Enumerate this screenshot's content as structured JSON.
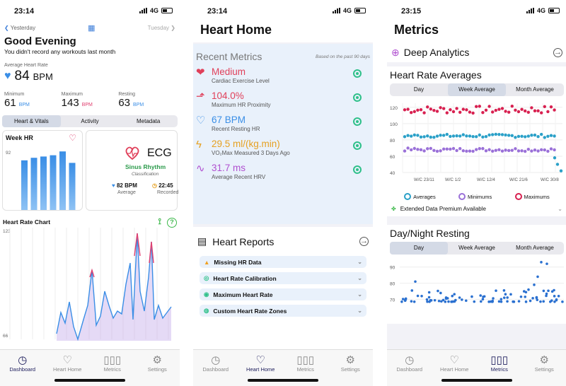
{
  "panels": [
    {
      "status": {
        "time": "23:14",
        "network": "4G"
      },
      "day_nav": {
        "prev": "Yesterday",
        "next": "Tuesday"
      },
      "greeting": "Good Evening",
      "subtitle": "You didn't record any workouts last month",
      "average": {
        "label": "Average Heart Rate",
        "value": "84",
        "unit": "BPM"
      },
      "stats": [
        {
          "label": "Minimum",
          "value": "61",
          "unit": "BPM"
        },
        {
          "label": "Maximum",
          "value": "143",
          "unit": "BPM"
        },
        {
          "label": "Resting",
          "value": "63",
          "unit": "BPM"
        }
      ],
      "segments": [
        "Heart & Vitals",
        "Activity",
        "Metadata"
      ],
      "week_hr": {
        "title": "Week HR",
        "axis_label": "92",
        "bars": [
          0.78,
          0.82,
          0.84,
          0.86,
          0.92,
          0.74
        ]
      },
      "ecg": {
        "title": "ECG",
        "rhythm": "Sinus Rhythm",
        "classification": "Classification",
        "avg_value": "82 BPM",
        "avg_label": "Average",
        "rec_value": "22:45",
        "rec_label": "Recorded"
      },
      "hr_chart": {
        "title": "Heart Rate Chart",
        "ymax": "123",
        "ymin": "66"
      },
      "colors": {
        "blue": "#3a8ee6",
        "pink": "#e04070",
        "green": "#3cb84a"
      }
    },
    {
      "status": {
        "time": "23:14",
        "network": "4G"
      },
      "title": "Heart Home",
      "recent": {
        "title": "Recent Metrics",
        "note": "Based on the past 90 days",
        "items": [
          {
            "icon": "heart-filled-icon",
            "value": "Medium",
            "label": "Cardiac Exercise Level",
            "color": "#e0405a"
          },
          {
            "icon": "chart-up-icon",
            "value": "104.0%",
            "label": "Maximum HR Proximity",
            "color": "#e0405a"
          },
          {
            "icon": "heart-outline-icon",
            "value": "67 BPM",
            "label": "Recent Resting HR",
            "color": "#3a8ee6"
          },
          {
            "icon": "bolt-icon",
            "value": "29.5 ml/(kg.min)",
            "label": "VO₂Max Measured 3 Days Ago",
            "color": "#e6a020"
          },
          {
            "icon": "waveform-icon",
            "value": "31.7 ms",
            "label": "Average Recent HRV",
            "color": "#b050d0"
          }
        ]
      },
      "reports": {
        "title": "Heart Reports",
        "items": [
          {
            "label": "Missing HR Data",
            "icon": "warning-icon",
            "color": "#f0a020"
          },
          {
            "label": "Heart Rate Calibration",
            "icon": "dial-icon",
            "color": "#2fc08a"
          },
          {
            "label": "Maximum Heart Rate",
            "icon": "target-icon",
            "color": "#2fc08a"
          },
          {
            "label": "Custom Heart Rate Zones",
            "icon": "zones-icon",
            "color": "#2fc08a"
          }
        ]
      }
    },
    {
      "status": {
        "time": "23:15",
        "network": "4G"
      },
      "title": "Metrics",
      "deep": "Deep Analytics",
      "averages": {
        "title": "Heart Rate Averages",
        "segments": [
          "Day",
          "Week Average",
          "Month Average"
        ],
        "y_ticks": [
          "120",
          "100",
          "80",
          "60",
          "40"
        ],
        "x_ticks": [
          "W/C 23/11",
          "W/C 1/2",
          "W/C 12/4",
          "W/C 21/6",
          "W/C 30/8"
        ],
        "legend": [
          "Averages",
          "Minimums",
          "Maximums"
        ],
        "extended": "Extended Data Premium Available"
      },
      "daynight": {
        "title": "Day/Night Resting",
        "segments": [
          "Day",
          "Week Average",
          "Month Average"
        ],
        "y_ticks": [
          "90",
          "80",
          "70"
        ]
      }
    }
  ],
  "tabs": [
    "Dashboard",
    "Heart Home",
    "Metrics",
    "Settings"
  ]
}
